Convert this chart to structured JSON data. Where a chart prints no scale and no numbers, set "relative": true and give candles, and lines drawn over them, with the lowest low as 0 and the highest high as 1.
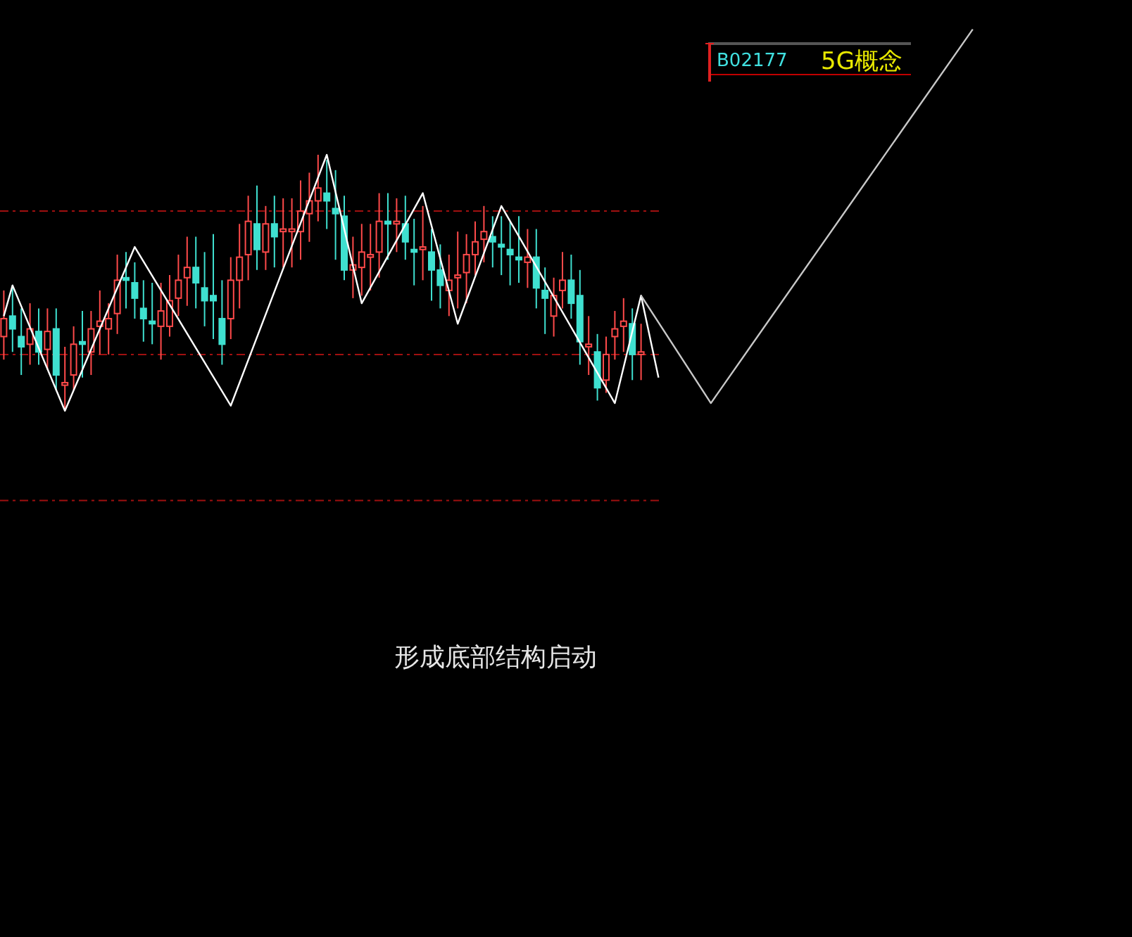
{
  "chart_data": {
    "type": "candlestick",
    "relative": true,
    "categories": [
      null,
      null,
      null,
      null,
      null,
      null,
      null,
      null,
      null,
      null,
      null,
      null,
      null,
      null,
      null,
      null,
      null,
      null,
      null,
      null,
      null,
      null,
      null,
      null,
      null,
      null,
      null,
      null,
      null,
      null,
      null,
      null,
      null,
      null,
      null,
      null,
      null,
      null,
      null,
      null,
      null,
      null,
      null,
      null,
      null,
      null,
      null,
      null,
      null,
      null,
      null,
      null,
      null,
      null,
      null,
      null,
      null,
      null,
      null,
      null,
      null,
      null,
      null,
      null,
      null,
      null,
      null,
      null,
      null,
      null,
      null,
      null,
      null,
      null,
      null,
      null,
      null,
      null,
      null,
      null,
      null,
      null,
      null,
      null,
      null,
      null,
      null,
      null,
      null,
      null,
      null,
      null,
      null,
      null,
      null,
      null,
      null,
      null,
      null,
      null,
      null,
      null,
      null,
      null,
      null,
      null,
      null,
      null,
      null,
      null,
      null,
      null,
      null
    ],
    "ohlc": [
      [
        0.29,
        0.47,
        0.2,
        0.36
      ],
      [
        0.37,
        0.49,
        0.23,
        0.32
      ],
      [
        0.29,
        0.4,
        0.14,
        0.25
      ],
      [
        0.26,
        0.42,
        0.18,
        0.32
      ],
      [
        0.31,
        0.4,
        0.18,
        0.23
      ],
      [
        0.24,
        0.4,
        0.16,
        0.31
      ],
      [
        0.32,
        0.4,
        0.08,
        0.14
      ],
      [
        0.1,
        0.25,
        0,
        0.11
      ],
      [
        0.14,
        0.33,
        0.08,
        0.26
      ],
      [
        0.27,
        0.39,
        0.13,
        0.26
      ],
      [
        0.23,
        0.39,
        0.14,
        0.32
      ],
      [
        0.33,
        0.47,
        0.22,
        0.35
      ],
      [
        0.32,
        0.42,
        0.22,
        0.36
      ],
      [
        0.38,
        0.61,
        0.3,
        0.51
      ],
      [
        0.52,
        0.62,
        0.4,
        0.51
      ],
      [
        0.5,
        0.58,
        0.36,
        0.44
      ],
      [
        0.4,
        0.51,
        0.27,
        0.36
      ],
      [
        0.35,
        0.5,
        0.26,
        0.34
      ],
      [
        0.33,
        0.5,
        0.2,
        0.39
      ],
      [
        0.33,
        0.53,
        0.29,
        0.43
      ],
      [
        0.44,
        0.61,
        0.37,
        0.51
      ],
      [
        0.52,
        0.68,
        0.41,
        0.56
      ],
      [
        0.56,
        0.68,
        0.4,
        0.5
      ],
      [
        0.48,
        0.62,
        0.33,
        0.43
      ],
      [
        0.45,
        0.69,
        0.28,
        0.43
      ],
      [
        0.36,
        0.51,
        0.18,
        0.26
      ],
      [
        0.36,
        0.6,
        0.28,
        0.51
      ],
      [
        0.51,
        0.73,
        0.4,
        0.6
      ],
      [
        0.61,
        0.84,
        0.51,
        0.74
      ],
      [
        0.73,
        0.88,
        0.55,
        0.63
      ],
      [
        0.62,
        0.8,
        0.55,
        0.73
      ],
      [
        0.73,
        0.84,
        0.56,
        0.68
      ],
      [
        0.7,
        0.83,
        0.56,
        0.71
      ],
      [
        0.7,
        0.83,
        0.56,
        0.71
      ],
      [
        0.7,
        0.9,
        0.59,
        0.78
      ],
      [
        0.77,
        0.93,
        0.66,
        0.82
      ],
      [
        0.82,
        1,
        0.74,
        0.87
      ],
      [
        0.85,
        0.98,
        0.71,
        0.82
      ],
      [
        0.79,
        0.94,
        0.59,
        0.77
      ],
      [
        0.76,
        0.84,
        0.51,
        0.55
      ],
      [
        0.55,
        0.68,
        0.44,
        0.57
      ],
      [
        0.56,
        0.73,
        0.45,
        0.62
      ],
      [
        0.6,
        0.73,
        0.47,
        0.61
      ],
      [
        0.62,
        0.85,
        0.52,
        0.74
      ],
      [
        0.74,
        0.85,
        0.59,
        0.73
      ],
      [
        0.73,
        0.83,
        0.62,
        0.74
      ],
      [
        0.73,
        0.84,
        0.59,
        0.66
      ],
      [
        0.63,
        0.75,
        0.49,
        0.62
      ],
      [
        0.63,
        0.8,
        0.51,
        0.64
      ],
      [
        0.62,
        0.71,
        0.43,
        0.55
      ],
      [
        0.55,
        0.65,
        0.4,
        0.49
      ],
      [
        0.47,
        0.61,
        0.37,
        0.51
      ],
      [
        0.52,
        0.7,
        0.4,
        0.53
      ],
      [
        0.54,
        0.69,
        0.42,
        0.61
      ],
      [
        0.61,
        0.74,
        0.53,
        0.66
      ],
      [
        0.67,
        0.8,
        0.58,
        0.7
      ],
      [
        0.68,
        0.76,
        0.56,
        0.66
      ],
      [
        0.65,
        0.76,
        0.53,
        0.64
      ],
      [
        0.63,
        0.74,
        0.49,
        0.61
      ],
      [
        0.6,
        0.76,
        0.5,
        0.59
      ],
      [
        0.58,
        0.71,
        0.48,
        0.6
      ],
      [
        0.6,
        0.71,
        0.4,
        0.48
      ],
      [
        0.47,
        0.56,
        0.3,
        0.44
      ],
      [
        0.37,
        0.52,
        0.29,
        0.45
      ],
      [
        0.47,
        0.62,
        0.4,
        0.51
      ],
      [
        0.51,
        0.61,
        0.36,
        0.42
      ],
      [
        0.45,
        0.55,
        0.18,
        0.27
      ],
      [
        0.25,
        0.37,
        0.14,
        0.26
      ],
      [
        0.23,
        0.3,
        0.04,
        0.09
      ],
      [
        0.12,
        0.29,
        0.07,
        0.22
      ],
      [
        0.29,
        0.39,
        0.2,
        0.32
      ],
      [
        0.33,
        0.44,
        0.23,
        0.35
      ],
      [
        0.34,
        0.4,
        0.12,
        0.22
      ],
      [
        0.22,
        0.34,
        0.12,
        0.23
      ],
      null,
      null,
      null,
      null,
      null,
      null,
      null,
      null,
      null,
      null,
      null,
      null,
      null,
      null,
      null,
      null,
      null,
      null,
      null,
      null,
      null,
      null,
      null,
      null,
      null,
      null,
      null,
      null,
      null,
      null,
      null,
      null,
      null,
      null,
      null,
      null,
      null,
      null,
      null
    ],
    "series": [
      {
        "type": "line",
        "color": "#ffffff",
        "values": [
          0.37,
          0.49,
          null,
          null,
          null,
          null,
          null,
          0,
          null,
          null,
          null,
          null,
          null,
          null,
          null,
          0.64,
          null,
          null,
          null,
          null,
          null,
          null,
          null,
          null,
          null,
          null,
          0.02,
          null,
          null,
          null,
          null,
          null,
          null,
          null,
          null,
          null,
          null,
          1,
          null,
          null,
          null,
          0.42,
          null,
          null,
          null,
          null,
          null,
          null,
          0.85,
          null,
          null,
          null,
          0.34,
          null,
          null,
          null,
          null,
          0.8,
          null,
          null,
          null,
          null,
          null,
          null,
          null,
          null,
          null,
          null,
          null,
          null,
          0.03,
          null,
          null,
          0.45,
          null,
          0.13,
          null,
          null,
          null,
          null,
          null,
          null,
          null,
          null,
          null,
          null,
          null,
          null,
          null,
          null,
          null,
          null,
          null,
          null,
          null,
          null,
          null,
          null,
          null,
          null,
          null,
          null,
          null,
          null,
          null,
          null,
          null,
          null,
          null,
          null,
          null,
          null,
          null
        ]
      },
      {
        "type": "line",
        "color": "#c8c8c8",
        "values": [
          null,
          null,
          null,
          null,
          null,
          null,
          null,
          null,
          null,
          null,
          null,
          null,
          null,
          null,
          null,
          null,
          null,
          null,
          null,
          null,
          null,
          null,
          null,
          null,
          null,
          null,
          null,
          null,
          null,
          null,
          null,
          null,
          null,
          null,
          null,
          null,
          null,
          null,
          null,
          null,
          null,
          null,
          null,
          null,
          null,
          null,
          null,
          null,
          null,
          null,
          null,
          null,
          null,
          null,
          null,
          null,
          null,
          null,
          null,
          null,
          null,
          null,
          null,
          null,
          null,
          null,
          null,
          null,
          null,
          null,
          null,
          null,
          null,
          0.45,
          null,
          null,
          null,
          null,
          null,
          null,
          null,
          0.03,
          null,
          null,
          null,
          null,
          null,
          null,
          null,
          null,
          null,
          null,
          null,
          null,
          null,
          null,
          null,
          null,
          null,
          null,
          null,
          null,
          null,
          null,
          null,
          null,
          null,
          null,
          null,
          null,
          null,
          1.49,
          null
        ]
      }
    ],
    "ref_lines": [
      {
        "axis": "y",
        "value": 0.78,
        "color": "#a01010",
        "line_style": "dashed"
      },
      {
        "axis": "y",
        "value": 0.22,
        "color": "#a01010",
        "line_style": "dashed"
      },
      {
        "axis": "y",
        "value": -0.35,
        "color": "#a01010",
        "line_style": "dashed"
      }
    ],
    "annotations": [
      "形成底部结构启动",
      "B02177",
      "5G概念"
    ]
  }
}
